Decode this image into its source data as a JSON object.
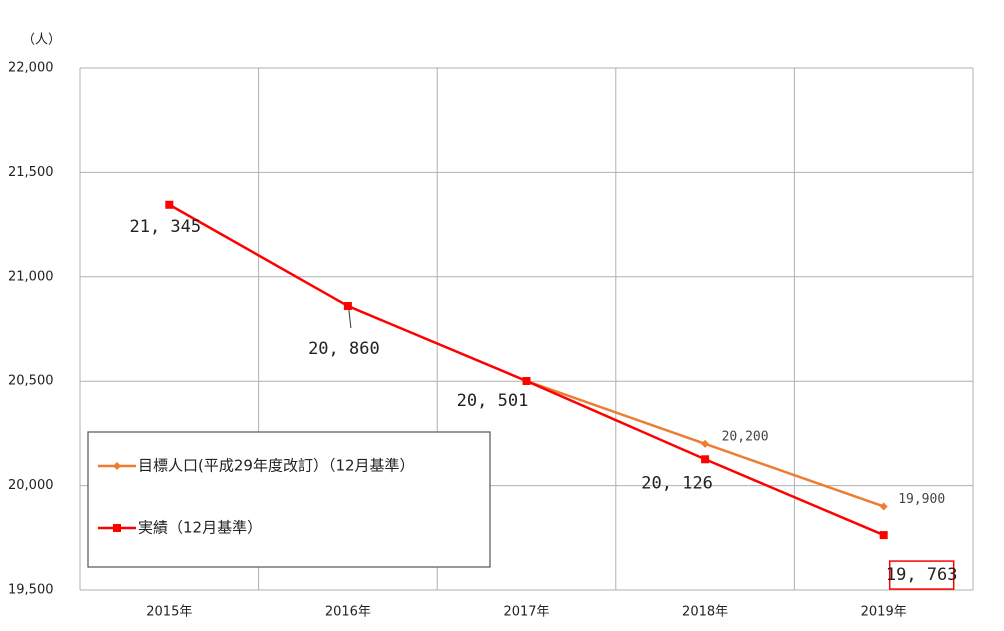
{
  "chart_data": {
    "type": "line",
    "y_unit": "（人）",
    "categories": [
      "2015年",
      "2016年",
      "2017年",
      "2018年",
      "2019年"
    ],
    "series": [
      {
        "name": "目標人口(平成29年度改訂）（12月基準）",
        "color": "#ed7d31",
        "marker": "diamond",
        "values": [
          null,
          null,
          20501,
          20200,
          19900
        ],
        "value_labels": [
          null,
          null,
          null,
          "20,200",
          "19,900"
        ]
      },
      {
        "name": "実績（12月基準）",
        "color": "#ff0000",
        "marker": "square",
        "values": [
          21345,
          20860,
          20501,
          20126,
          19763
        ],
        "value_labels": [
          "21, 345",
          "20, 860",
          "20, 501",
          "20, 126",
          "19, 763"
        ]
      }
    ],
    "ylim": [
      19500,
      22000
    ],
    "yticks": [
      {
        "value": 19500,
        "label": "19,500"
      },
      {
        "value": 20000,
        "label": "20,000"
      },
      {
        "value": 20500,
        "label": "20,500"
      },
      {
        "value": 21000,
        "label": "21,000"
      },
      {
        "value": 21500,
        "label": "21,500"
      },
      {
        "value": 22000,
        "label": "22,000"
      }
    ],
    "grid": true,
    "legend": "bottom-left"
  }
}
